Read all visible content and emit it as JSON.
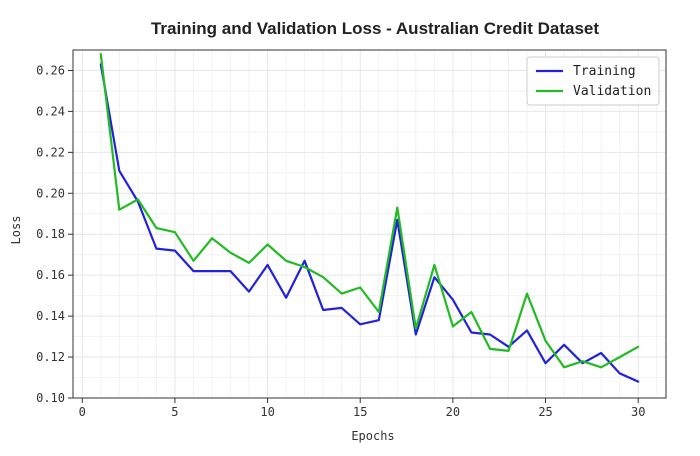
{
  "chart_data": {
    "type": "line",
    "title": "Training and Validation Loss - Australian Credit Dataset",
    "xlabel": "Epochs",
    "ylabel": "Loss",
    "xlim": [
      -0.5,
      31.5
    ],
    "ylim": [
      0.1,
      0.27
    ],
    "xticks": [
      0,
      5,
      10,
      15,
      20,
      25,
      30
    ],
    "yticks": [
      0.1,
      0.12,
      0.14,
      0.16,
      0.18,
      0.2,
      0.22,
      0.24,
      0.26
    ],
    "grid": true,
    "legend_position": "top-right",
    "x": [
      1,
      2,
      3,
      4,
      5,
      6,
      7,
      8,
      9,
      10,
      11,
      12,
      13,
      14,
      15,
      16,
      17,
      18,
      19,
      20,
      21,
      22,
      23,
      24,
      25,
      26,
      27,
      28,
      29,
      30
    ],
    "series": [
      {
        "name": "Training",
        "color": "#2222dd",
        "values": [
          0.263,
          0.211,
          0.196,
          0.173,
          0.172,
          0.162,
          0.162,
          0.162,
          0.152,
          0.165,
          0.149,
          0.167,
          0.143,
          0.144,
          0.136,
          0.138,
          0.187,
          0.131,
          0.159,
          0.148,
          0.132,
          0.131,
          0.125,
          0.133,
          0.117,
          0.126,
          0.117,
          0.122,
          0.112,
          0.108
        ]
      },
      {
        "name": "Validation",
        "color": "#22bb22",
        "values": [
          0.268,
          0.192,
          0.197,
          0.183,
          0.181,
          0.167,
          0.178,
          0.171,
          0.166,
          0.175,
          0.167,
          0.164,
          0.159,
          0.151,
          0.154,
          0.142,
          0.193,
          0.134,
          0.165,
          0.135,
          0.142,
          0.124,
          0.123,
          0.151,
          0.128,
          0.115,
          0.118,
          0.115,
          0.12,
          0.125
        ]
      }
    ]
  }
}
